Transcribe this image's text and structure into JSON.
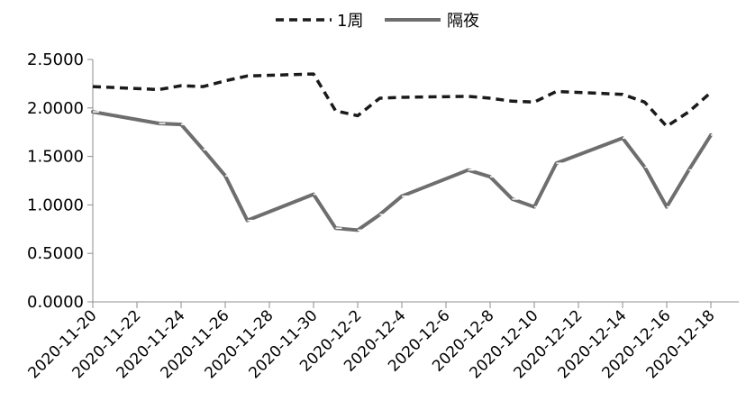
{
  "chart_data": {
    "type": "line",
    "title": "",
    "xlabel": "",
    "ylabel": "",
    "ylim": [
      0,
      2.5
    ],
    "y_ticks": [
      "0.0000",
      "0.5000",
      "1.0000",
      "1.5000",
      "2.0000",
      "2.5000"
    ],
    "x_tick_labels": [
      "2020-11-20",
      "2020-11-22",
      "2020-11-24",
      "2020-11-26",
      "2020-11-28",
      "2020-11-30",
      "2020-12-2",
      "2020-12-4",
      "2020-12-6",
      "2020-12-8",
      "2020-12-10",
      "2020-12-12",
      "2020-12-14",
      "2020-12-16",
      "2020-12-18"
    ],
    "x": [
      "2020-11-20",
      "2020-11-23",
      "2020-11-24",
      "2020-11-25",
      "2020-11-26",
      "2020-11-27",
      "2020-11-30",
      "2020-12-01",
      "2020-12-02",
      "2020-12-03",
      "2020-12-04",
      "2020-12-07",
      "2020-12-08",
      "2020-12-09",
      "2020-12-10",
      "2020-12-11",
      "2020-12-14",
      "2020-12-15",
      "2020-12-16",
      "2020-12-17",
      "2020-12-18"
    ],
    "series": [
      {
        "name": "1周",
        "style": "dashed",
        "color": "#1a1a1a",
        "values": [
          2.22,
          2.19,
          2.23,
          2.22,
          2.28,
          2.33,
          2.35,
          1.97,
          1.92,
          2.1,
          2.11,
          2.12,
          2.1,
          2.07,
          2.06,
          2.17,
          2.14,
          2.06,
          1.81,
          1.96,
          2.16
        ]
      },
      {
        "name": "隔夜",
        "style": "solid",
        "color": "#6e6e6e",
        "values": [
          1.96,
          1.84,
          1.83,
          1.57,
          1.3,
          0.84,
          1.11,
          0.76,
          0.74,
          0.9,
          1.09,
          1.36,
          1.29,
          1.06,
          0.98,
          1.43,
          1.69,
          1.39,
          0.98,
          1.36,
          1.72
        ]
      }
    ],
    "legend_position": "top",
    "grid": false
  }
}
